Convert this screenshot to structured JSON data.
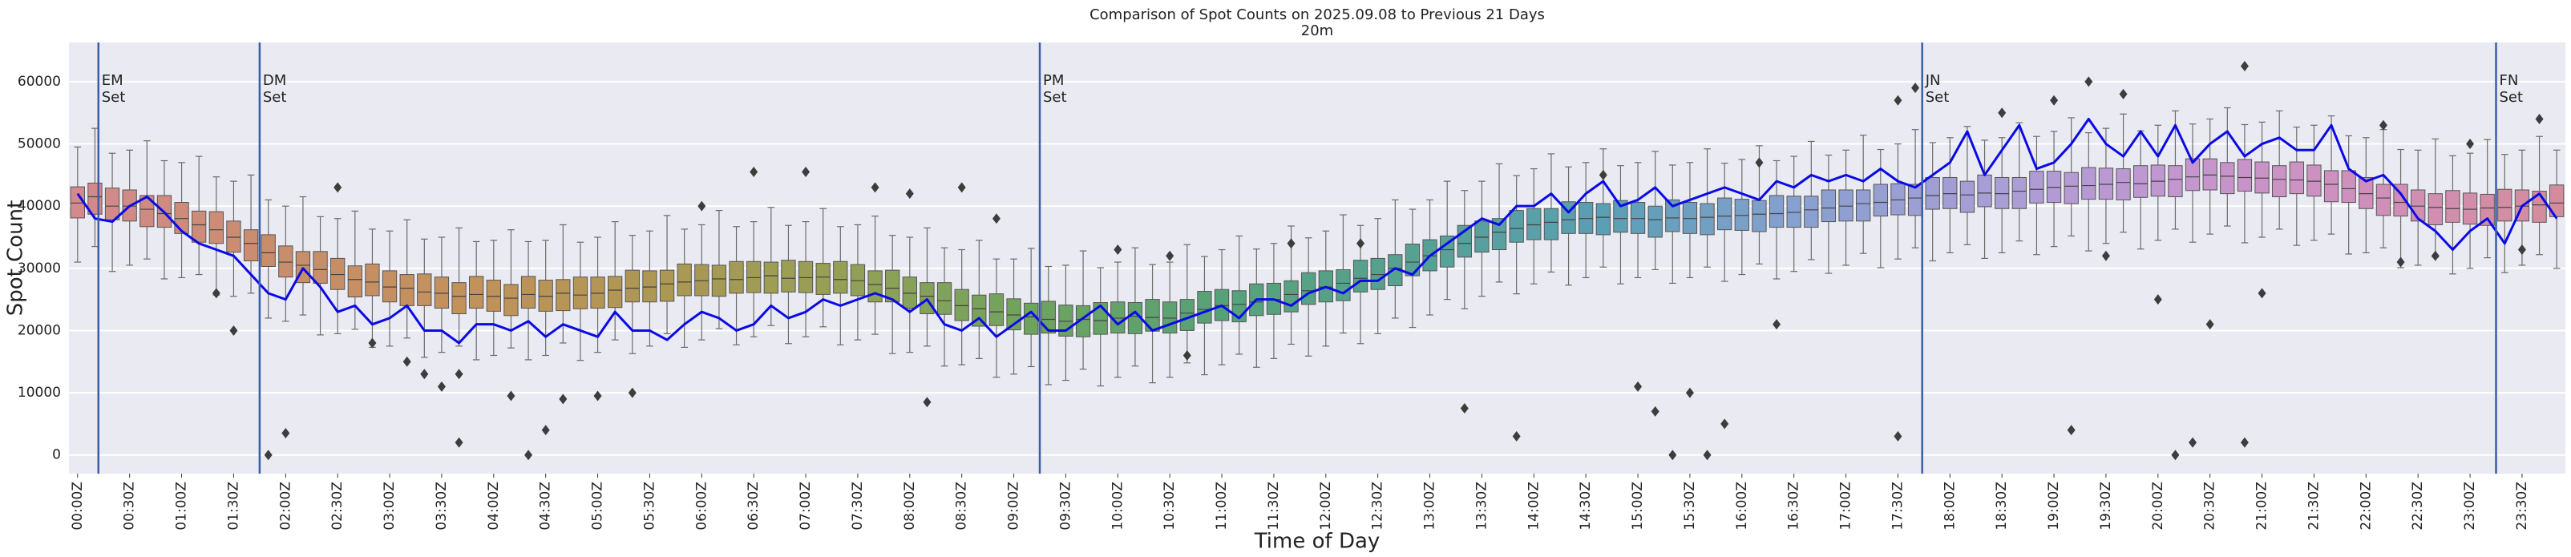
{
  "chart_data": {
    "type": "box",
    "title": "Comparison of Spot Counts on 2025.09.08 to Previous 21 Days",
    "subtitle": "20m",
    "xlabel": "Time of Day",
    "ylabel": "Spot Count",
    "categories": [
      "00:00Z",
      null,
      null,
      "00:30Z",
      null,
      null,
      "01:00Z",
      null,
      null,
      "01:30Z",
      null,
      null,
      "02:00Z",
      null,
      null,
      "02:30Z",
      null,
      null,
      "03:00Z",
      null,
      null,
      "03:30Z",
      null,
      null,
      "04:00Z",
      null,
      null,
      "04:30Z",
      null,
      null,
      "05:00Z",
      null,
      null,
      "05:30Z",
      null,
      null,
      "06:00Z",
      null,
      null,
      "06:30Z",
      null,
      null,
      "07:00Z",
      null,
      null,
      "07:30Z",
      null,
      null,
      "08:00Z",
      null,
      null,
      "08:30Z",
      null,
      null,
      "09:00Z",
      null,
      null,
      "09:30Z",
      null,
      null,
      "10:00Z",
      null,
      null,
      "10:30Z",
      null,
      null,
      "11:00Z",
      null,
      null,
      "11:30Z",
      null,
      null,
      "12:00Z",
      null,
      null,
      "12:30Z",
      null,
      null,
      "13:00Z",
      null,
      null,
      "13:30Z",
      null,
      null,
      "14:00Z",
      null,
      null,
      "14:30Z",
      null,
      null,
      "15:00Z",
      null,
      null,
      "15:30Z",
      null,
      null,
      "16:00Z",
      null,
      null,
      "16:30Z",
      null,
      null,
      "17:00Z",
      null,
      null,
      "17:30Z",
      null,
      null,
      "18:00Z",
      null,
      null,
      "18:30Z",
      null,
      null,
      "19:00Z",
      null,
      null,
      "19:30Z",
      null,
      null,
      "20:00Z",
      null,
      null,
      "20:30Z",
      null,
      null,
      "21:00Z",
      null,
      null,
      "21:30Z",
      null,
      null,
      "22:00Z",
      null,
      null,
      "22:30Z",
      null,
      null,
      "23:00Z",
      null,
      null,
      "23:30Z",
      null,
      null
    ],
    "boxes": {
      "median": [
        40500,
        41500,
        40000,
        40000,
        39500,
        38800,
        38000,
        37000,
        36200,
        35000,
        34000,
        32500,
        31000,
        30500,
        29800,
        29000,
        28200,
        27800,
        27000,
        26800,
        26200,
        26000,
        25500,
        25800,
        25500,
        25200,
        25800,
        25500,
        26000,
        25700,
        26000,
        26500,
        26800,
        27000,
        27500,
        27800,
        28000,
        28300,
        28200,
        28500,
        28800,
        28400,
        28500,
        28600,
        28200,
        28000,
        27400,
        26800,
        26000,
        25500,
        24800,
        24000,
        23500,
        23000,
        22500,
        22200,
        21800,
        21500,
        21800,
        21600,
        22000,
        22300,
        22100,
        22000,
        22800,
        23400,
        24000,
        24200,
        24600,
        25000,
        25800,
        26400,
        27000,
        27600,
        28400,
        29000,
        30000,
        31000,
        32000,
        33000,
        34000,
        35000,
        35800,
        36400,
        37000,
        37400,
        37800,
        38000,
        38200,
        38000,
        38000,
        37800,
        38100,
        38000,
        38200,
        38400,
        38500,
        38700,
        38800,
        39000,
        39400,
        39700,
        40000,
        40400,
        40600,
        41000,
        41300,
        41700,
        42000,
        41800,
        42100,
        42000,
        42400,
        42700,
        43000,
        43200,
        43300,
        43500,
        43800,
        43600,
        44000,
        44300,
        44700,
        45000,
        44800,
        44600,
        44500,
        44300,
        44200,
        44000,
        43500,
        42800,
        42000,
        41300,
        40600,
        40000,
        39800,
        39600,
        39500,
        39700,
        39800,
        40000,
        40200,
        40500
      ],
      "q1": [
        38100,
        38700,
        37800,
        37600,
        36700,
        36600,
        35600,
        34200,
        34000,
        32600,
        31200,
        30300,
        28600,
        27700,
        27600,
        26600,
        25400,
        25600,
        24600,
        24000,
        24000,
        23600,
        22700,
        23600,
        23100,
        22400,
        23600,
        23100,
        23200,
        23500,
        23600,
        23700,
        24600,
        24600,
        24700,
        25600,
        25600,
        25500,
        26000,
        26100,
        26000,
        26200,
        26100,
        25800,
        26000,
        25600,
        24600,
        24600,
        23600,
        22700,
        22600,
        21600,
        20700,
        20800,
        20100,
        19400,
        19600,
        19100,
        19000,
        19400,
        19600,
        19500,
        19900,
        19600,
        20000,
        21200,
        21600,
        21400,
        22400,
        22600,
        23000,
        24200,
        24600,
        24800,
        26200,
        26600,
        27200,
        28800,
        29600,
        30200,
        31800,
        32600,
        33000,
        34200,
        34600,
        34600,
        35600,
        35600,
        35400,
        35800,
        35600,
        35000,
        35900,
        35600,
        35400,
        36200,
        36100,
        35900,
        36600,
        36600,
        36600,
        37500,
        37600,
        37600,
        38400,
        38600,
        38500,
        39500,
        39600,
        39000,
        39900,
        39600,
        39600,
        40500,
        40600,
        40400,
        41100,
        41100,
        41000,
        41400,
        41600,
        41500,
        42500,
        42600,
        42000,
        42400,
        42100,
        41500,
        42000,
        41600,
        40700,
        40600,
        39600,
        38500,
        38400,
        37600,
        37000,
        37400,
        37100,
        36900,
        37600,
        37600,
        37400,
        38300
      ],
      "q3": [
        43100,
        43700,
        42900,
        42600,
        41700,
        41700,
        40600,
        39200,
        39100,
        37600,
        36200,
        35400,
        33600,
        32700,
        32700,
        31600,
        30400,
        30700,
        29600,
        29000,
        29100,
        28600,
        27700,
        28700,
        28100,
        27400,
        28700,
        28100,
        28200,
        28600,
        28600,
        28700,
        29700,
        29600,
        29700,
        30700,
        30600,
        30500,
        31100,
        31100,
        31000,
        31300,
        31100,
        30800,
        31100,
        30600,
        29600,
        29700,
        28600,
        27700,
        27700,
        26600,
        25700,
        25900,
        25100,
        24400,
        24700,
        24100,
        24000,
        24500,
        24600,
        24500,
        25000,
        24600,
        25000,
        26300,
        26600,
        26400,
        27500,
        27600,
        28000,
        29300,
        29600,
        29800,
        31300,
        31600,
        32200,
        33900,
        34600,
        35200,
        36900,
        37600,
        38000,
        39300,
        39600,
        39600,
        40700,
        40600,
        40400,
        40900,
        40600,
        40000,
        41000,
        40600,
        40400,
        41300,
        41100,
        40900,
        41700,
        41600,
        41600,
        42600,
        42600,
        42600,
        43500,
        43600,
        43500,
        44600,
        44600,
        44000,
        45000,
        44600,
        44600,
        45600,
        45600,
        45400,
        46200,
        46100,
        46000,
        46500,
        46600,
        46500,
        47600,
        47600,
        47000,
        47500,
        47100,
        46500,
        47100,
        46600,
        45700,
        45700,
        44600,
        43500,
        43500,
        42600,
        42000,
        42500,
        42100,
        41900,
        42700,
        42600,
        42400,
        43400
      ],
      "whislo": [
        31000,
        33500,
        29500,
        30500,
        31500,
        28300,
        28500,
        29000,
        25700,
        25500,
        26000,
        22000,
        21500,
        22500,
        19300,
        19500,
        20200,
        17300,
        17500,
        18800,
        15700,
        16500,
        17500,
        15300,
        16000,
        17200,
        15300,
        16000,
        18000,
        15200,
        16500,
        18500,
        16300,
        17500,
        19500,
        17300,
        18500,
        20300,
        17700,
        19000,
        20800,
        17900,
        19000,
        20600,
        17700,
        18500,
        19400,
        16300,
        16500,
        17500,
        14300,
        14500,
        15500,
        12500,
        13000,
        14200,
        11300,
        12000,
        13800,
        11100,
        12500,
        14300,
        11600,
        12500,
        14800,
        12900,
        14500,
        16200,
        14100,
        15500,
        17800,
        15900,
        17500,
        19600,
        17900,
        19500,
        22000,
        20500,
        22500,
        25000,
        23500,
        25500,
        27800,
        25900,
        27500,
        29400,
        27300,
        28500,
        30200,
        27500,
        28500,
        29800,
        27600,
        28500,
        30200,
        27900,
        29000,
        30700,
        28300,
        29500,
        31400,
        29200,
        30500,
        32400,
        30100,
        31500,
        33300,
        31200,
        32500,
        33800,
        31600,
        32500,
        34400,
        32200,
        33500,
        35200,
        32800,
        34000,
        35800,
        33100,
        34500,
        36300,
        34200,
        35500,
        36800,
        34100,
        35000,
        36300,
        33700,
        34500,
        35500,
        32300,
        32500,
        33300,
        30100,
        30500,
        31800,
        29100,
        30000,
        31700,
        29300,
        30500,
        32200,
        30000
      ],
      "whishi": [
        49500,
        52500,
        48500,
        49000,
        50500,
        47300,
        47000,
        48000,
        44700,
        44000,
        45000,
        41000,
        40000,
        41500,
        38300,
        38000,
        39200,
        36300,
        36000,
        37800,
        34700,
        35000,
        36500,
        34300,
        34500,
        36200,
        34300,
        34500,
        37000,
        34200,
        35000,
        37500,
        35300,
        36000,
        38500,
        36300,
        37000,
        39300,
        36700,
        37500,
        39800,
        36900,
        37500,
        39600,
        36700,
        37000,
        38400,
        35300,
        35000,
        36500,
        33300,
        33000,
        34500,
        31500,
        31500,
        33200,
        30300,
        30500,
        32800,
        30100,
        31000,
        33300,
        30600,
        31000,
        33800,
        31900,
        33000,
        35200,
        33100,
        34000,
        36800,
        34900,
        36000,
        38600,
        36900,
        38000,
        41000,
        39500,
        41000,
        44000,
        42500,
        44000,
        46800,
        44900,
        46000,
        48400,
        46300,
        47000,
        49200,
        46500,
        47000,
        48800,
        46600,
        47000,
        49200,
        46900,
        47500,
        49700,
        47300,
        48000,
        50400,
        48200,
        49000,
        51400,
        49100,
        50000,
        52300,
        50200,
        51000,
        52800,
        50600,
        51000,
        53400,
        51200,
        52000,
        54200,
        51800,
        52500,
        54800,
        52100,
        53000,
        55300,
        53200,
        54000,
        55800,
        53100,
        53500,
        55300,
        52700,
        53000,
        54500,
        51300,
        51000,
        52300,
        49100,
        49000,
        50800,
        48100,
        48500,
        50700,
        48300,
        49000,
        51200,
        49000
      ]
    },
    "palette": [
      "#d4898f",
      "#c98d6c",
      "#c3915a",
      "#ae9753",
      "#95a055",
      "#6ea35e",
      "#56a278",
      "#56a192",
      "#5a9fb4",
      "#86a0cf",
      "#a89ed6",
      "#c496d0",
      "#d08fbb",
      "#d48c9c"
    ],
    "outlier_x": [
      8,
      9,
      11,
      12,
      15,
      17,
      19,
      20,
      21,
      22,
      22,
      25,
      26,
      27,
      28,
      30,
      32,
      36,
      39,
      42,
      46,
      48,
      49,
      51,
      53,
      60,
      63,
      64,
      70,
      74,
      80,
      83,
      88,
      90,
      91,
      92,
      93,
      94,
      95,
      97,
      98,
      105,
      105,
      106,
      111,
      114,
      115,
      116,
      117,
      118,
      120,
      121,
      122,
      123,
      125,
      125,
      126,
      133,
      134,
      136,
      138,
      141,
      142
    ],
    "outlier_values": [
      26000,
      20000,
      0,
      3500,
      43000,
      18000,
      15000,
      13000,
      11000,
      2000,
      13000,
      9500,
      0,
      4000,
      9000,
      9500,
      10000,
      40000,
      45500,
      45500,
      43000,
      42000,
      8500,
      43000,
      38000,
      33000,
      32000,
      16000,
      34000,
      34000,
      7500,
      3000,
      45000,
      11000,
      7000,
      0,
      10000,
      0,
      5000,
      47000,
      21000,
      57000,
      3000,
      59000,
      55000,
      57000,
      4000,
      60000,
      32000,
      58000,
      25000,
      0,
      2000,
      21000,
      62500,
      2000,
      26000,
      53000,
      31000,
      32000,
      50000,
      33000,
      54000
    ],
    "line": {
      "color": "#0a0ae6",
      "values": [
        42000,
        38000,
        37500,
        40000,
        41500,
        39000,
        36000,
        34000,
        33000,
        32000,
        29000,
        26000,
        25000,
        30000,
        27000,
        23000,
        24000,
        21000,
        22000,
        24000,
        20000,
        20000,
        18000,
        21000,
        21000,
        20000,
        21500,
        19000,
        21000,
        20000,
        19000,
        23000,
        20000,
        20000,
        18500,
        21000,
        23000,
        22000,
        20000,
        21000,
        24000,
        22000,
        23000,
        25000,
        24000,
        25000,
        26000,
        25000,
        23000,
        25000,
        21000,
        20000,
        22000,
        19000,
        21000,
        23000,
        20000,
        20000,
        22000,
        24000,
        21000,
        23000,
        20000,
        21000,
        22000,
        23000,
        24000,
        22000,
        25000,
        25000,
        24000,
        26000,
        27000,
        26000,
        28000,
        28000,
        30000,
        29000,
        32000,
        34000,
        36000,
        38000,
        37000,
        40000,
        40000,
        42000,
        39000,
        42000,
        44000,
        40000,
        41000,
        43000,
        40000,
        41000,
        42000,
        43000,
        42000,
        41000,
        44000,
        43000,
        45000,
        44000,
        45000,
        44000,
        46000,
        44000,
        43000,
        45000,
        47000,
        52000,
        45000,
        49000,
        53000,
        46000,
        47000,
        50000,
        54000,
        50000,
        48000,
        52000,
        48000,
        53000,
        47000,
        50000,
        52000,
        48000,
        50000,
        51000,
        49000,
        49000,
        53000,
        46000,
        44000,
        45000,
        42000,
        38000,
        36000,
        33000,
        36000,
        38000,
        34000,
        40000,
        42000,
        38000
      ]
    },
    "annotations": [
      {
        "position": 1.2,
        "lines": [
          "EM",
          "Set"
        ]
      },
      {
        "position": 10.5,
        "lines": [
          "DM",
          "Set"
        ]
      },
      {
        "position": 55.5,
        "lines": [
          "PM",
          "Set"
        ]
      },
      {
        "position": 106.4,
        "lines": [
          "JN",
          "Set"
        ]
      },
      {
        "position": 139.5,
        "lines": [
          "FN",
          "Set"
        ]
      }
    ],
    "annotation_color": "#3a5fa8",
    "ylim": [
      -3000,
      66300
    ],
    "yticks": [
      0,
      10000,
      20000,
      30000,
      40000,
      50000,
      60000
    ],
    "grid": true
  }
}
